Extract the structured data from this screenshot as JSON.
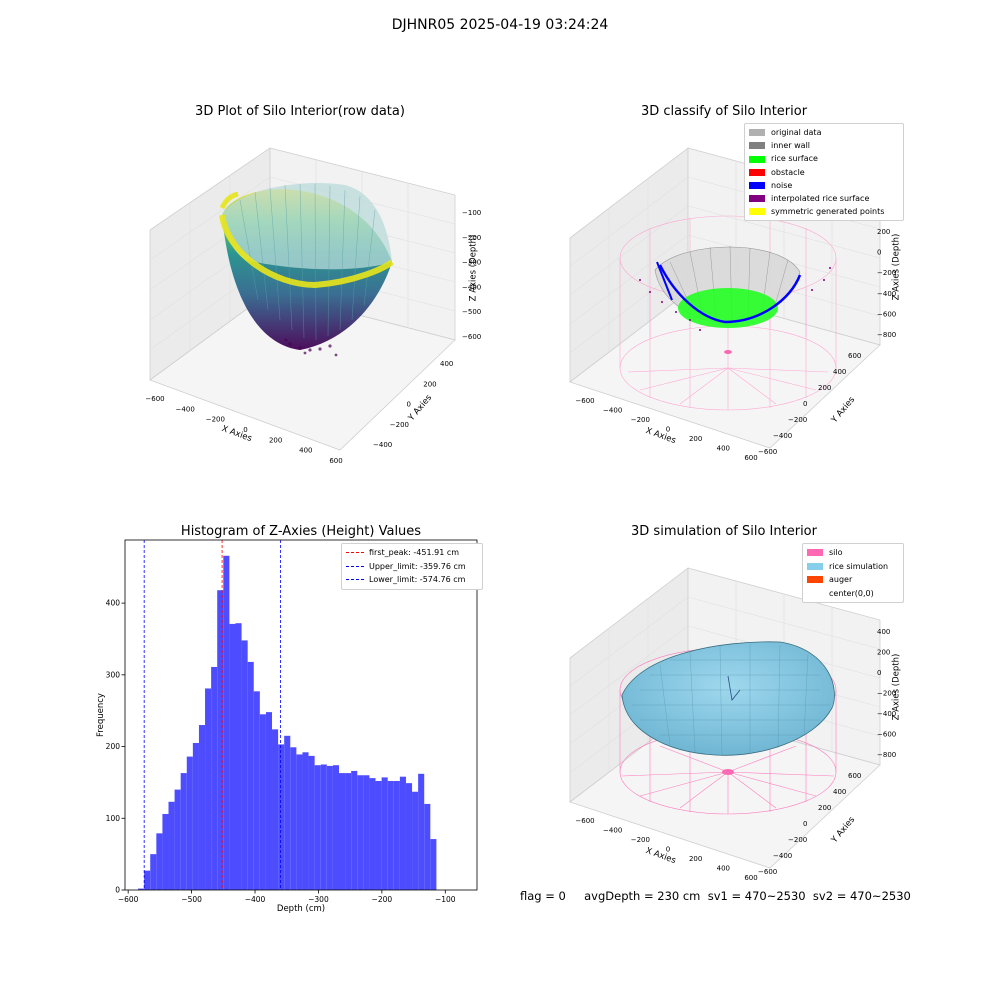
{
  "figure_title": "DJHNR05 2025-04-19 03:24:24",
  "footer": {
    "text": "flag = 0     avgDepth = 230 cm  sv1 = 470~2530  sv2 = 470~2530"
  },
  "colors": {
    "viridis_low": "#440154",
    "viridis_mid": "#21918c",
    "viridis_high": "#fde725",
    "hist_bar": "#4d4dff",
    "peak_line": "#ff0000",
    "limit_line": "#0000ff",
    "silo": "#ff69b4",
    "rice": "#87ceeb",
    "auger": "#ff4500"
  },
  "chart_data": [
    {
      "id": "raw3d",
      "type": "scatter",
      "title": "3D Plot of Silo Interior(row data)",
      "xlabel": "X Axies",
      "ylabel": "Y Axies",
      "zlabel": "Z Axies (Depth)",
      "x_ticks": [
        "−600",
        "−400",
        "−200",
        "0",
        "200",
        "400",
        "600"
      ],
      "y_ticks": [
        "−400",
        "−200",
        "0",
        "200",
        "400"
      ],
      "z_ticks": [
        "−100",
        "−200",
        "−300",
        "−400",
        "−500",
        "−600"
      ],
      "colormap": "viridis"
    },
    {
      "id": "classify3d",
      "type": "scatter",
      "title": "3D classify of Silo Interior",
      "xlabel": "X Axies",
      "ylabel": "Y Axies",
      "zlabel": "Z Axies (Depth)",
      "x_ticks": [
        "−600",
        "−400",
        "−200",
        "0",
        "200",
        "400",
        "600"
      ],
      "y_ticks": [
        "−600",
        "−400",
        "−200",
        "0",
        "200",
        "400",
        "600"
      ],
      "z_ticks": [
        "200",
        "0",
        "−200",
        "−400",
        "−600",
        "−800"
      ],
      "legend": [
        {
          "label": "original data",
          "color": "#b0b0b0"
        },
        {
          "label": "inner wall",
          "color": "#808080"
        },
        {
          "label": "rice surface",
          "color": "#00ff00"
        },
        {
          "label": "obstacle",
          "color": "#ff0000"
        },
        {
          "label": "noise",
          "color": "#0000ff"
        },
        {
          "label": "interpolated rice surface",
          "color": "#800080"
        },
        {
          "label": "symmetric generated points",
          "color": "#ffff00"
        }
      ],
      "legend_position": "top-right"
    },
    {
      "id": "histogram",
      "type": "bar",
      "title": "Histogram of Z-Axies (Height) Values",
      "xlabel": "Depth (cm)",
      "ylabel": "Frequency",
      "xlim": [
        -605,
        -50
      ],
      "ylim": [
        0,
        488
      ],
      "x_ticks": [
        -600,
        -500,
        -400,
        -300,
        -200,
        -100
      ],
      "x_tick_labels": [
        "−600",
        "−500",
        "−400",
        "−300",
        "−200",
        "−100"
      ],
      "y_ticks": [
        0,
        100,
        200,
        300,
        400
      ],
      "bin_start": -584.4,
      "bin_width": 9.6,
      "values": [
        2,
        27,
        50,
        79,
        106,
        123,
        140,
        163,
        186,
        205,
        230,
        281,
        311,
        418,
        466,
        371,
        372,
        348,
        318,
        277,
        245,
        248,
        224,
        203,
        215,
        199,
        189,
        192,
        187,
        174,
        175,
        173,
        174,
        163,
        163,
        166,
        160,
        160,
        156,
        152,
        157,
        152,
        152,
        158,
        149,
        137,
        162,
        120,
        71
      ],
      "vlines": [
        {
          "label": "first_peak: -451.91 cm",
          "x": -451.91,
          "color": "#ff0000"
        },
        {
          "label": "Upper_limit: -359.76 cm",
          "x": -359.76,
          "color": "#0000ff"
        },
        {
          "label": "Lower_limit: -574.76 cm",
          "x": -574.76,
          "color": "#0000ff"
        }
      ],
      "legend_position": "top-right"
    },
    {
      "id": "sim3d",
      "type": "scatter",
      "title": "3D simulation of Silo Interior",
      "xlabel": "X Axies",
      "ylabel": "Y Axies",
      "zlabel": "Z Axies (Depth)",
      "x_ticks": [
        "−600",
        "−400",
        "−200",
        "0",
        "200",
        "400",
        "600"
      ],
      "y_ticks": [
        "−600",
        "−400",
        "−200",
        "0",
        "200",
        "400",
        "600"
      ],
      "z_ticks": [
        "400",
        "200",
        "0",
        "−200",
        "−400",
        "−600",
        "−800"
      ],
      "legend": [
        {
          "label": "silo",
          "color": "#ff69b4"
        },
        {
          "label": "rice simulation",
          "color": "#87ceeb"
        },
        {
          "label": "auger",
          "color": "#ff4500"
        },
        {
          "label": "center(0,0)",
          "color": ""
        }
      ],
      "legend_position": "top-right"
    }
  ]
}
